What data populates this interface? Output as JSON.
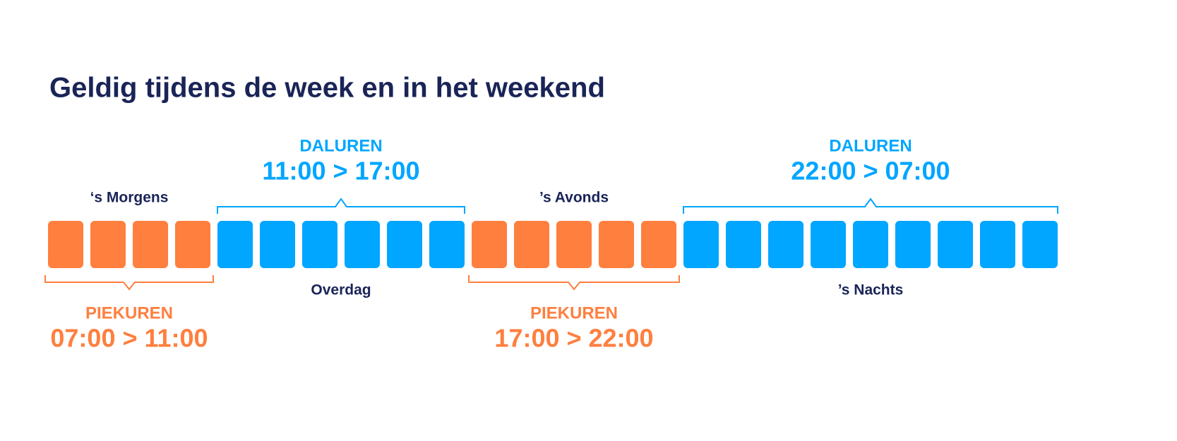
{
  "title": "Geldig tijdens de week en in het weekend",
  "segments": [
    {
      "name": "‘s Morgens",
      "kind": "PIEKUREN",
      "time": "07:00 > 11:00",
      "color": "#ff7f3f"
    },
    {
      "name": "Overdag",
      "kind": "DALUREN",
      "time": "11:00 > 17:00",
      "color": "#00a6ff"
    },
    {
      "name": "’s Avonds",
      "kind": "PIEKUREN",
      "time": "17:00 > 22:00",
      "color": "#ff7f3f"
    },
    {
      "name": "’s Nachts",
      "kind": "DALUREN",
      "time": "22:00 > 07:00",
      "color": "#00a6ff"
    }
  ]
}
